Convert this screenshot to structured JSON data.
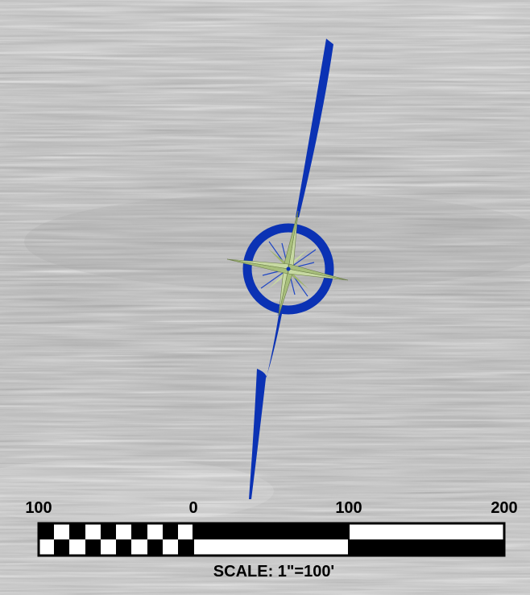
{
  "map": {
    "basemap": "aerial photo of plowed agricultural field (grayscale)",
    "north_arrow": {
      "icon": "compass-rose-icon",
      "ring_color": "#0b32b4",
      "arrow_color": "#0b32b4",
      "star_color": "#c7d9a2"
    },
    "scale_bar": {
      "tick_labels": [
        "100",
        "0",
        "100",
        "200"
      ],
      "caption": "SCALE: 1\"=100'",
      "bar_color": "#000000",
      "fill_color": "#ffffff"
    }
  }
}
